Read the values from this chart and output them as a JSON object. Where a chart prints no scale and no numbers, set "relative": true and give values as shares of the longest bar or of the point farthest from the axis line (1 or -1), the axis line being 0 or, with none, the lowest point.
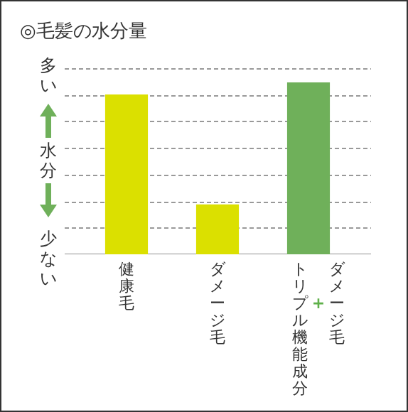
{
  "chart_data": {
    "type": "bar",
    "title": "◎毛髪の水分量",
    "ylabel": "水分",
    "annotations": [
      "多い",
      "少ない"
    ],
    "categories": [
      "健康毛",
      "ダメージ毛",
      "ダメージ毛+トリプル機能成分"
    ],
    "values": [
      0.93,
      0.29,
      1
    ],
    "colors": [
      "#dbe000",
      "#dbe000",
      "#6fb05a"
    ],
    "relative": true,
    "grid": "y"
  }
}
